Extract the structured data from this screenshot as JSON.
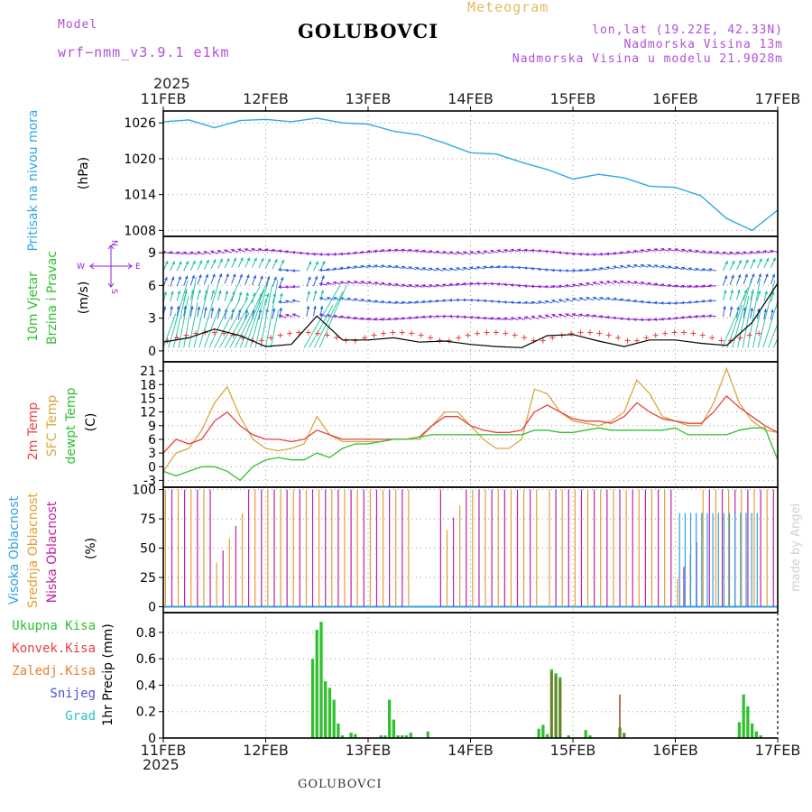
{
  "header": {
    "model_label": "Model",
    "model_version": "wrf−nmm_v3.9.1  e1km",
    "title": "GOLUBOVCI",
    "meteogram_label": "Meteogram",
    "lonlat": "lon,lat (19.22E, 42.33N)",
    "elevation": "Nadmorska Visina 13m",
    "model_elevation": "Nadmorska Visina u modelu 21.9028m",
    "year_top": "2025",
    "year_bottom": "2025",
    "bottom_title": "GOLUBOVCI",
    "credit": "made by Angel"
  },
  "panels": {
    "pressure": {
      "label": "Pritisak na nivou mora",
      "unit": "(hPa)"
    },
    "wind": {
      "label1": "10m Vjetar",
      "label2": "Brzina i Pravac",
      "unit": "(m/s)",
      "compass_w": "W",
      "compass_e": "E",
      "compass_n": "N",
      "compass_s": "S"
    },
    "temp": {
      "label1": "2m Temp",
      "label2": "SFC Temp",
      "label3": "dewpt Temp",
      "unit": "(C)"
    },
    "cloud": {
      "label1": "Visoka Oblacnost",
      "label2": "Srednja Oblacnost",
      "label3": "Niska Oblacnost",
      "unit": "(%)"
    },
    "precip": {
      "unit": "1hr Precip (mm)",
      "legend": [
        "Ukupna Kisa",
        "Konvek.Kisa",
        "Zaledj.Kisa",
        "Snijeg",
        "Grad"
      ]
    }
  },
  "colors": {
    "pressure": "#2fa8e6",
    "temp2m": "#e84040",
    "sfc": "#d8a840",
    "dewpt": "#30c030",
    "high_cloud": "#30a0e0",
    "mid_cloud": "#e0a030",
    "low_cloud": "#c020a0",
    "rain": "#30c030",
    "conv": "#e84040",
    "frz": "#e88030",
    "snow": "#5050e0",
    "grad": "#30c0c0",
    "wind_purple": "#9020d0",
    "wind_blue": "#3060e0",
    "wind_teal": "#20c0a0",
    "wind_green": "#30c030"
  },
  "chart_data": [
    {
      "type": "line",
      "name": "pressure",
      "x_ticks": [
        "11FEB",
        "12FEB",
        "13FEB",
        "14FEB",
        "15FEB",
        "16FEB",
        "17FEB"
      ],
      "x_range": [
        0,
        144
      ],
      "ylim": [
        1007,
        1028
      ],
      "y_ticks": [
        1008,
        1014,
        1020,
        1026
      ],
      "grid": true,
      "series": [
        {
          "x": [
            0,
            6,
            12,
            18,
            24,
            30,
            36,
            42,
            48,
            54,
            60,
            66,
            72,
            78,
            84,
            90,
            96,
            102,
            108,
            114,
            120,
            126,
            132,
            138,
            144
          ],
          "values": [
            1026.2,
            1026.5,
            1025.2,
            1026.4,
            1026.6,
            1026.2,
            1026.8,
            1026.0,
            1025.8,
            1024.6,
            1024.0,
            1022.6,
            1021.0,
            1020.8,
            1019.4,
            1018.2,
            1016.6,
            1017.4,
            1016.8,
            1015.4,
            1015.2,
            1013.8,
            1010.0,
            1008.0,
            1011.4
          ]
        }
      ]
    },
    {
      "type": "line",
      "name": "wind",
      "x_range": [
        0,
        144
      ],
      "ylim": [
        -1,
        10.5
      ],
      "y_ticks": [
        0,
        3,
        6,
        9
      ],
      "grid": true,
      "series": [
        {
          "x": [
            0,
            6,
            12,
            18,
            24,
            30,
            36,
            42,
            48,
            54,
            60,
            66,
            72,
            78,
            84,
            90,
            96,
            102,
            108,
            114,
            120,
            126,
            132,
            138,
            144
          ],
          "values": [
            0.8,
            1.2,
            2.0,
            1.4,
            0.4,
            0.6,
            3.2,
            1.0,
            1.0,
            1.2,
            0.8,
            0.9,
            0.6,
            0.4,
            0.3,
            1.4,
            1.5,
            0.9,
            0.4,
            1.0,
            1.0,
            0.7,
            0.5,
            2.6,
            6.2
          ]
        }
      ]
    },
    {
      "type": "line",
      "name": "temperature",
      "x_range": [
        0,
        144
      ],
      "ylim": [
        -4.5,
        23
      ],
      "y_ticks": [
        -3,
        0,
        3,
        6,
        9,
        12,
        15,
        18,
        21
      ],
      "grid": true,
      "series": [
        {
          "name": "2m Temp",
          "x": [
            0,
            3,
            6,
            9,
            12,
            15,
            18,
            21,
            24,
            27,
            30,
            33,
            36,
            39,
            42,
            45,
            48,
            51,
            54,
            57,
            60,
            63,
            66,
            69,
            72,
            75,
            78,
            81,
            84,
            87,
            90,
            93,
            96,
            99,
            102,
            105,
            108,
            111,
            114,
            117,
            120,
            123,
            126,
            129,
            132,
            135,
            138,
            141,
            144
          ],
          "values": [
            3,
            6,
            5,
            6,
            10,
            12,
            9,
            7,
            6,
            6,
            5.5,
            6,
            8,
            7,
            6,
            6,
            6,
            6,
            6,
            6,
            6.5,
            9,
            11,
            11,
            9,
            8,
            7.5,
            7.5,
            8,
            12,
            13.5,
            12,
            10.5,
            10,
            10,
            9.5,
            11,
            14,
            12,
            10.5,
            10,
            9.5,
            9.5,
            12,
            15.5,
            13,
            11,
            9,
            7.5
          ]
        },
        {
          "name": "SFC Temp",
          "x": [
            0,
            3,
            6,
            9,
            12,
            15,
            18,
            21,
            24,
            27,
            30,
            33,
            36,
            39,
            42,
            45,
            48,
            51,
            54,
            57,
            60,
            63,
            66,
            69,
            72,
            75,
            78,
            81,
            84,
            87,
            90,
            93,
            96,
            99,
            102,
            105,
            108,
            111,
            114,
            117,
            120,
            123,
            126,
            129,
            132,
            135,
            138,
            141,
            144
          ],
          "values": [
            -1,
            3,
            4,
            8,
            14,
            17.5,
            11,
            6,
            4,
            3.5,
            4,
            5,
            11,
            7,
            5.5,
            5.5,
            5.5,
            5.5,
            6,
            6,
            6,
            9,
            12,
            12,
            9,
            6,
            4,
            4,
            6,
            17,
            16,
            12,
            10,
            9.5,
            9,
            10,
            12,
            19,
            16,
            11,
            10,
            9,
            9,
            14,
            21.5,
            14,
            10,
            8,
            7.5
          ]
        },
        {
          "name": "dewpt Temp",
          "x": [
            0,
            3,
            6,
            9,
            12,
            15,
            18,
            21,
            24,
            27,
            30,
            33,
            36,
            39,
            42,
            45,
            48,
            51,
            54,
            57,
            60,
            63,
            66,
            69,
            72,
            75,
            78,
            81,
            84,
            87,
            90,
            93,
            96,
            99,
            102,
            105,
            108,
            111,
            114,
            117,
            120,
            123,
            126,
            129,
            132,
            135,
            138,
            141,
            144
          ],
          "values": [
            -1,
            -2,
            -1,
            0,
            0,
            -1,
            -3,
            0,
            1.5,
            2,
            1.5,
            1.5,
            3,
            2,
            4,
            5,
            5,
            5.5,
            6,
            6,
            6.5,
            7,
            7,
            7,
            7,
            7,
            7,
            7,
            7,
            8,
            8,
            7.5,
            7.5,
            8,
            8.5,
            8,
            8,
            8,
            8,
            8,
            8.5,
            7,
            7,
            7,
            7,
            8,
            8.5,
            8.5,
            1.5
          ]
        }
      ]
    },
    {
      "type": "bar",
      "name": "cloud",
      "x_range": [
        0,
        144
      ],
      "ylim": [
        -5,
        102
      ],
      "y_ticks": [
        0,
        25,
        50,
        75,
        100
      ],
      "grid": true,
      "series": [
        {
          "name": "Visoka Oblacnost",
          "note": "mostly 0 with full cover near end"
        },
        {
          "name": "Srednja Oblacnost",
          "note": "frequent 100% spikes"
        },
        {
          "name": "Niska Oblacnost",
          "note": "frequent 100% spikes"
        }
      ]
    },
    {
      "type": "bar",
      "name": "precip",
      "x_range": [
        0,
        144
      ],
      "ylim": [
        0,
        0.95
      ],
      "y_ticks": [
        0,
        0.2,
        0.4,
        0.6,
        0.8
      ],
      "grid": true,
      "series": [
        {
          "name": "Ukupna Kisa",
          "x": [
            35,
            36,
            37,
            38,
            39,
            40,
            41,
            42,
            44,
            45,
            51,
            52,
            53,
            54,
            55,
            56,
            57,
            58,
            62,
            88,
            89,
            90,
            91,
            92,
            93,
            95,
            99,
            100,
            107,
            108,
            135,
            136,
            137,
            138,
            139,
            140
          ],
          "values": [
            0.6,
            0.82,
            0.88,
            0.43,
            0.38,
            0.29,
            0.11,
            0.02,
            0.04,
            0.03,
            0.02,
            0.02,
            0.29,
            0.14,
            0.02,
            0.02,
            0.02,
            0.04,
            0.05,
            0.07,
            0.1,
            0.03,
            0.52,
            0.49,
            0.46,
            0.02,
            0.06,
            0.02,
            0.08,
            0.04,
            0.12,
            0.33,
            0.24,
            0.11,
            0.05,
            0.02
          ]
        },
        {
          "name": "Konvek.Kisa",
          "x": [
            91,
            92,
            93,
            107,
            108
          ],
          "values": [
            0.5,
            0.47,
            0.44,
            0.33,
            0.03
          ]
        }
      ]
    }
  ]
}
